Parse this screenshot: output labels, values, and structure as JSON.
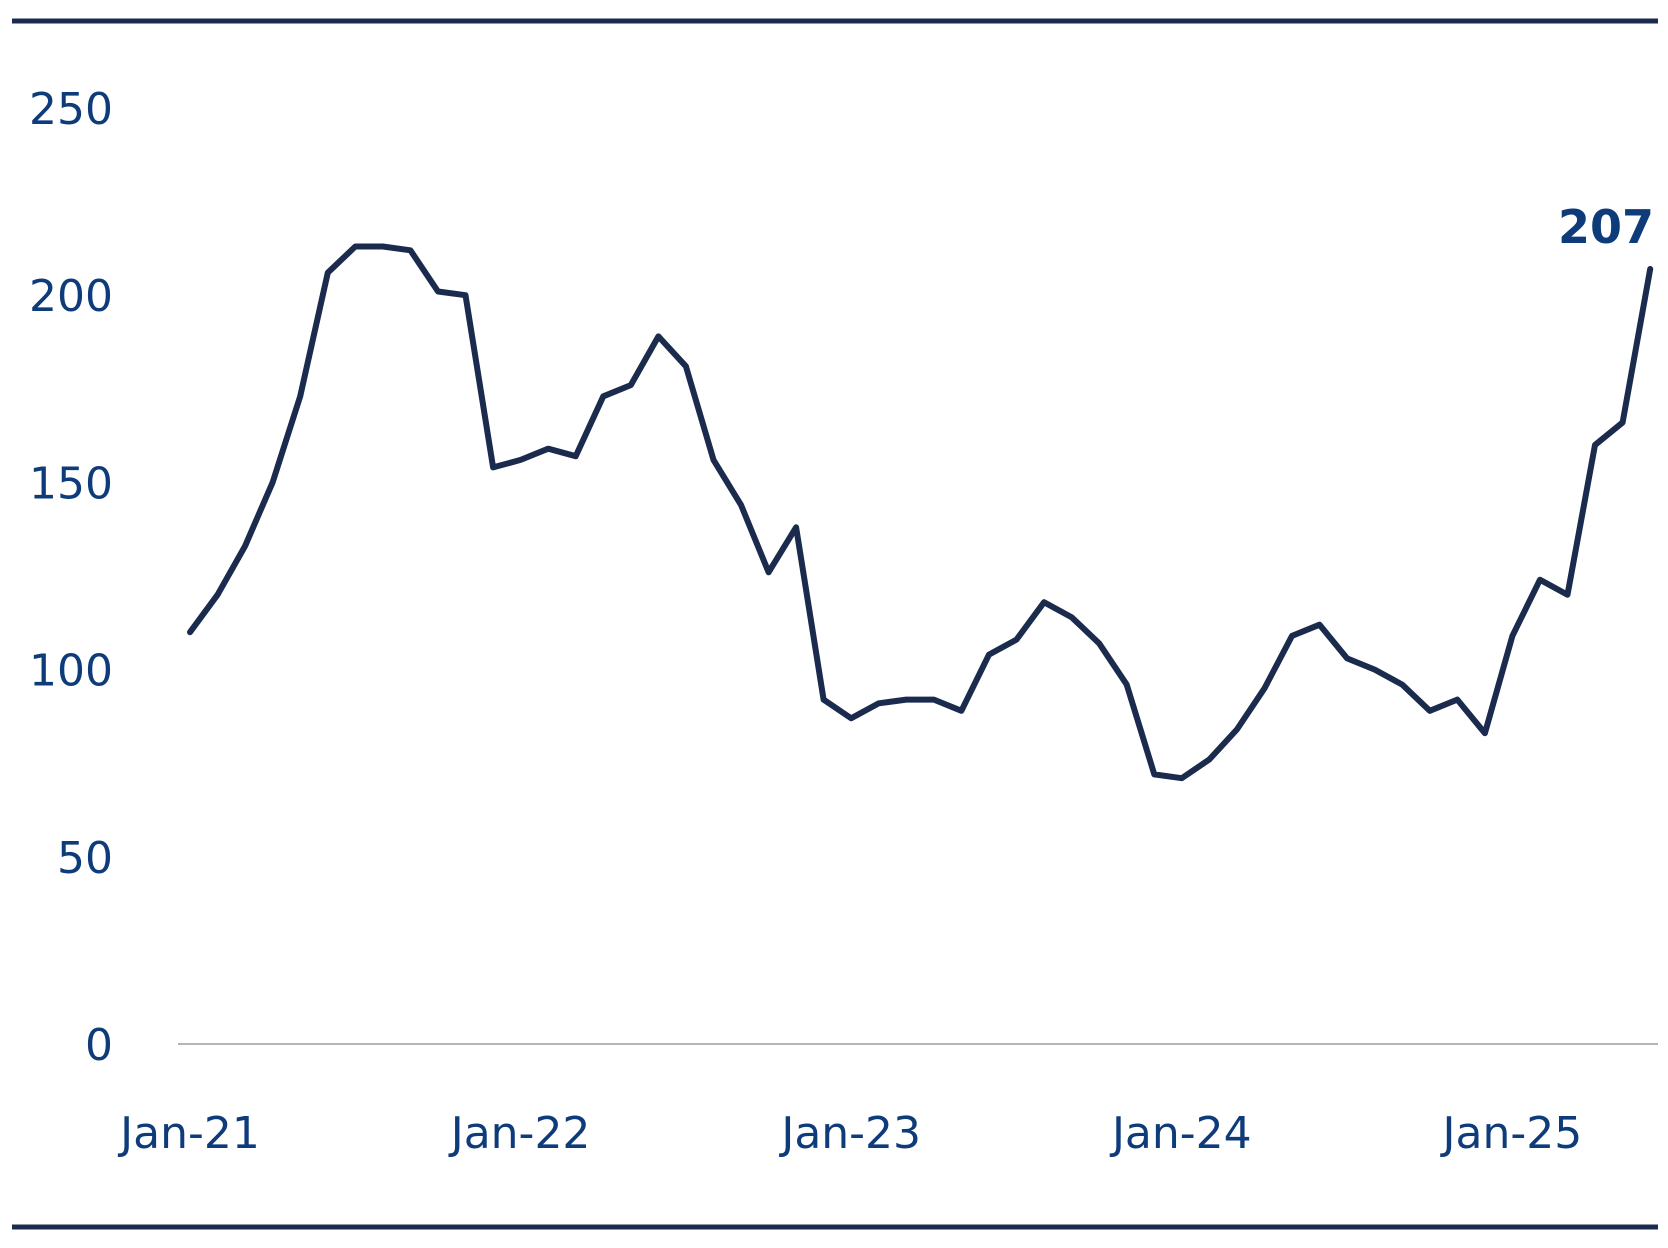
{
  "chart_data": {
    "type": "line",
    "title": "",
    "xlabel": "",
    "ylabel": "",
    "ylim": [
      0,
      250
    ],
    "yticks": [
      0,
      50,
      100,
      150,
      200,
      250
    ],
    "ytick_labels": [
      "0",
      "50",
      "100",
      "150",
      "200",
      "250"
    ],
    "xticks": [
      0,
      12,
      24,
      36,
      48
    ],
    "xtick_labels": [
      "Jan-21",
      "Jan-22",
      "Jan-23",
      "Jan-24",
      "Jan-25"
    ],
    "grid": false,
    "legend": "none",
    "end_label": "207",
    "colors": {
      "line": "#1b2b4d",
      "text": "#0e3b7a",
      "rule": "#1b2b4d",
      "axis": "#b5b5b5"
    },
    "series": [
      {
        "x": [
          "Jan-21",
          "Feb-21",
          "Mar-21",
          "Apr-21",
          "May-21",
          "Jun-21",
          "Jul-21",
          "Aug-21",
          "Sep-21",
          "Oct-21",
          "Nov-21",
          "Dec-21",
          "Jan-22",
          "Feb-22",
          "Mar-22",
          "Apr-22",
          "May-22",
          "Jun-22",
          "Jul-22",
          "Aug-22",
          "Sep-22",
          "Oct-22",
          "Nov-22",
          "Dec-22",
          "Jan-23",
          "Feb-23",
          "Mar-23",
          "Apr-23",
          "May-23",
          "Jun-23",
          "Jul-23",
          "Aug-23",
          "Sep-23",
          "Oct-23",
          "Nov-23",
          "Dec-23",
          "Jan-24",
          "Feb-24",
          "Mar-24",
          "Apr-24",
          "May-24",
          "Jun-24",
          "Jul-24",
          "Aug-24",
          "Sep-24",
          "Oct-24",
          "Nov-24",
          "Dec-24",
          "Jan-25",
          "Feb-25",
          "Mar-25",
          "Apr-25",
          "May-25",
          "Jun-25"
        ],
        "values": [
          110,
          120,
          133,
          150,
          173,
          206,
          213,
          213,
          212,
          201,
          200,
          154,
          156,
          159,
          157,
          173,
          176,
          189,
          181,
          156,
          144,
          126,
          138,
          92,
          87,
          91,
          92,
          92,
          89,
          104,
          108,
          118,
          114,
          107,
          96,
          72,
          71,
          76,
          84,
          95,
          109,
          112,
          103,
          100,
          96,
          89,
          92,
          83,
          109,
          124,
          120,
          160,
          166,
          207
        ]
      }
    ]
  }
}
